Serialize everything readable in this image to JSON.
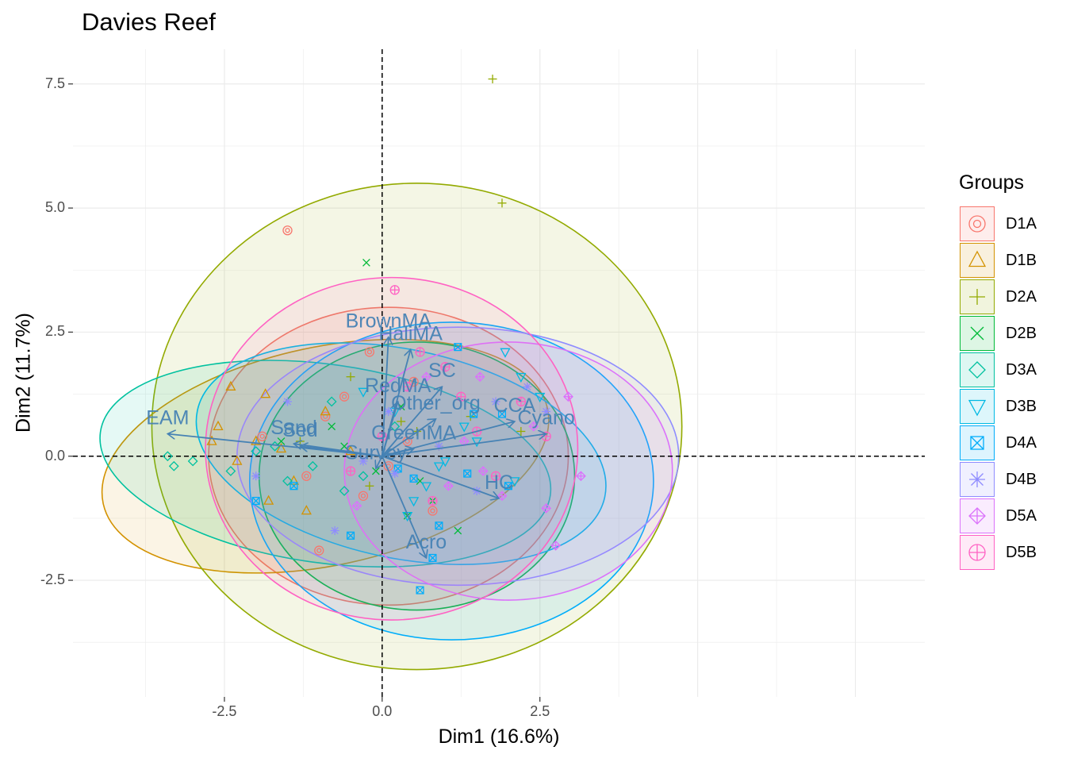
{
  "title": "Davies Reef",
  "legend": {
    "title": "Groups",
    "entries": [
      {
        "name": "D1A",
        "color": "#F8766D",
        "shape": "circle-open-dot"
      },
      {
        "name": "D1B",
        "color": "#D39200",
        "shape": "triangle-open"
      },
      {
        "name": "D2A",
        "color": "#93AA00",
        "shape": "plus"
      },
      {
        "name": "D2B",
        "color": "#00BA38",
        "shape": "cross"
      },
      {
        "name": "D3A",
        "color": "#00C19F",
        "shape": "diamond-open"
      },
      {
        "name": "D3B",
        "color": "#00B9E3",
        "shape": "triangle-down-open"
      },
      {
        "name": "D4A",
        "color": "#00ADFA",
        "shape": "square-cross"
      },
      {
        "name": "D4B",
        "color": "#8F8CFF",
        "shape": "asterisk"
      },
      {
        "name": "D5A",
        "color": "#DB72FB",
        "shape": "diamond-plus"
      },
      {
        "name": "D5B",
        "color": "#FF61C3",
        "shape": "circle-plus"
      }
    ]
  },
  "chart_data": {
    "type": "scatter",
    "title": "Davies Reef",
    "xlabel": "Dim1 (16.6%)",
    "ylabel": "Dim2 (11.7%)",
    "xlim": [
      -4.9,
      8.6
    ],
    "ylim": [
      -4.85,
      8.2
    ],
    "xticks": [
      -2.5,
      0.0,
      2.5
    ],
    "xtick_labels": [
      "-2.5",
      "0.0",
      "2.5"
    ],
    "yticks": [
      -2.5,
      0.0,
      2.5,
      5.0,
      7.5
    ],
    "ytick_labels": [
      "-2.5",
      "0.0",
      "2.5",
      "5.0",
      "7.5"
    ],
    "grid": true,
    "reference_lines": {
      "x": 0,
      "y": 0,
      "style": "dashed"
    },
    "vectors": [
      {
        "label": "EAM",
        "x": -3.4,
        "y": 0.45
      },
      {
        "label": "Sand",
        "x": -1.4,
        "y": 0.25
      },
      {
        "label": "Sed",
        "x": -1.3,
        "y": 0.2
      },
      {
        "label": "BrownMA",
        "x": 0.1,
        "y": 2.4
      },
      {
        "label": "HaliMA",
        "x": 0.45,
        "y": 2.15
      },
      {
        "label": "RedMA",
        "x": 0.25,
        "y": 1.1
      },
      {
        "label": "SC",
        "x": 0.95,
        "y": 1.4
      },
      {
        "label": "Other_org",
        "x": 0.85,
        "y": 0.75
      },
      {
        "label": "Survey",
        "x": -0.1,
        "y": -0.25
      },
      {
        "label": "GreenMA",
        "x": 0.5,
        "y": 0.15
      },
      {
        "label": "CCA",
        "x": 2.1,
        "y": 0.7
      },
      {
        "label": "Cyano",
        "x": 2.6,
        "y": 0.45
      },
      {
        "label": "HC",
        "x": 1.85,
        "y": -0.85
      },
      {
        "label": "Acro",
        "x": 0.7,
        "y": -2.05
      }
    ],
    "ellipses": [
      {
        "group": "D1A",
        "cx": 0.1,
        "cy": 0.0,
        "rx": 2.85,
        "ry": 3.0,
        "angle": 0
      },
      {
        "group": "D1B",
        "cx": -0.9,
        "cy": 0.0,
        "rx": 3.6,
        "ry": 2.2,
        "angle": -12
      },
      {
        "group": "D2A",
        "cx": 0.55,
        "cy": 0.6,
        "rx": 4.2,
        "ry": 4.9,
        "angle": 0
      },
      {
        "group": "D2B",
        "cx": 0.55,
        "cy": -0.4,
        "rx": 2.5,
        "ry": 2.7,
        "angle": 0
      },
      {
        "group": "D3A",
        "cx": -0.9,
        "cy": -0.15,
        "rx": 3.6,
        "ry": 2.0,
        "angle": 8
      },
      {
        "group": "D3B",
        "cx": 0.3,
        "cy": 0.05,
        "rx": 3.3,
        "ry": 2.1,
        "angle": 12
      },
      {
        "group": "D4A",
        "cx": 1.1,
        "cy": -0.5,
        "rx": 3.2,
        "ry": 3.2,
        "angle": 0
      },
      {
        "group": "D4B",
        "cx": 1.2,
        "cy": 0.0,
        "rx": 3.5,
        "ry": 2.6,
        "angle": 0
      },
      {
        "group": "D5A",
        "cx": 2.0,
        "cy": -0.3,
        "rx": 2.6,
        "ry": 2.6,
        "angle": 0
      },
      {
        "group": "D5B",
        "cx": 0.15,
        "cy": 0.15,
        "rx": 2.95,
        "ry": 3.45,
        "angle": 0
      }
    ],
    "series": [
      {
        "name": "D1A",
        "x": [
          -1.5,
          -0.6,
          -0.2,
          0.4,
          -1.2,
          -0.9,
          0.8,
          -0.3,
          -1.9,
          0.1,
          -1.0,
          0.5
        ],
        "y": [
          4.55,
          1.2,
          2.1,
          0.3,
          -0.4,
          0.8,
          -1.1,
          -0.8,
          0.4,
          -0.2,
          -1.9,
          1.5
        ]
      },
      {
        "name": "D1B",
        "x": [
          -2.4,
          -2.6,
          -1.85,
          -1.6,
          -2.0,
          -1.4,
          -0.9,
          -2.3,
          -1.8,
          -0.5,
          -2.7,
          -1.2
        ],
        "y": [
          1.4,
          0.6,
          1.25,
          0.15,
          0.3,
          -0.5,
          0.9,
          -0.1,
          -0.9,
          0.1,
          0.3,
          -1.1
        ]
      },
      {
        "name": "D2A",
        "x": [
          1.75,
          1.9,
          0.3,
          0.55,
          -0.5,
          -1.3,
          2.2,
          0.9,
          -0.2,
          1.4
        ],
        "y": [
          7.6,
          5.1,
          0.7,
          0.5,
          1.6,
          0.3,
          0.5,
          0.2,
          -0.6,
          0.8
        ]
      },
      {
        "name": "D2B",
        "x": [
          -0.25,
          -0.8,
          0.4,
          0.6,
          -0.6,
          0.8,
          -1.6,
          -0.1,
          0.3,
          1.2
        ],
        "y": [
          3.9,
          0.6,
          -1.2,
          -0.5,
          0.2,
          -0.9,
          0.3,
          -0.3,
          1.0,
          -1.5
        ]
      },
      {
        "name": "D3A",
        "x": [
          -3.4,
          -3.3,
          -3.0,
          -1.7,
          -2.4,
          -1.5,
          -0.8,
          -1.1,
          -0.3,
          0.2,
          -0.6,
          -2.0
        ],
        "y": [
          0.0,
          -0.2,
          -0.1,
          0.2,
          -0.3,
          -0.5,
          1.1,
          -0.2,
          -0.4,
          0.6,
          -0.7,
          0.1
        ]
      },
      {
        "name": "D3B",
        "x": [
          1.95,
          2.2,
          1.5,
          0.7,
          0.4,
          0.9,
          1.3,
          0.5,
          2.1,
          2.5,
          -0.3,
          1.0,
          0.2
        ],
        "y": [
          2.1,
          1.6,
          0.3,
          -0.6,
          -1.2,
          -0.2,
          0.6,
          -0.9,
          -0.5,
          1.2,
          1.3,
          -0.1,
          0.9
        ]
      },
      {
        "name": "D4A",
        "x": [
          1.45,
          1.2,
          1.9,
          0.5,
          0.9,
          0.8,
          0.6,
          1.35,
          0.25,
          -2.0,
          -0.5,
          2.0,
          -1.4
        ],
        "y": [
          0.85,
          2.2,
          0.85,
          -0.45,
          -1.4,
          -2.05,
          -2.7,
          -0.35,
          -0.25,
          -0.9,
          -1.6,
          -0.6,
          -0.6
        ]
      },
      {
        "name": "D4B",
        "x": [
          -1.5,
          0.1,
          0.2,
          -0.75,
          2.6,
          2.3,
          1.5,
          0.9,
          -0.3,
          -2.0,
          1.8
        ],
        "y": [
          1.1,
          0.9,
          -0.35,
          -1.5,
          0.9,
          1.4,
          -0.7,
          0.2,
          -0.1,
          -0.4,
          1.1
        ]
      },
      {
        "name": "D5A",
        "x": [
          1.6,
          1.55,
          2.95,
          3.15,
          2.75,
          2.6,
          1.3,
          1.9,
          0.7,
          1.05,
          -0.4,
          2.4
        ],
        "y": [
          -0.3,
          1.6,
          1.2,
          -0.4,
          -1.8,
          -1.05,
          0.3,
          -0.8,
          1.6,
          -0.6,
          -1.0,
          0.6
        ]
      },
      {
        "name": "D5B",
        "x": [
          0.2,
          0.6,
          0.0,
          1.25,
          1.5,
          2.2,
          2.6,
          0.8,
          1.0,
          -0.5,
          1.8,
          0.4
        ],
        "y": [
          3.35,
          2.1,
          0.4,
          1.2,
          0.5,
          1.1,
          0.4,
          -0.9,
          1.8,
          -0.3,
          -0.4,
          1.4
        ]
      }
    ]
  }
}
